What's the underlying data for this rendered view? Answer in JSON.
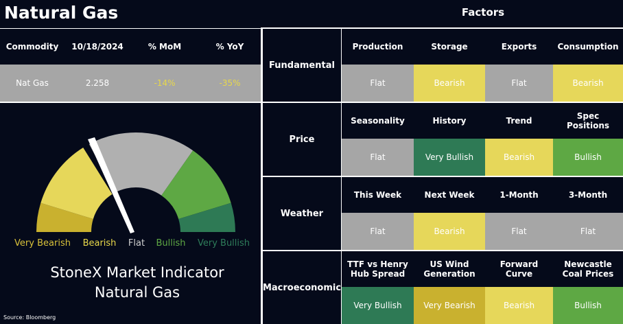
{
  "title": "Natural Gas",
  "factors_header": "Factors",
  "commodity_table": {
    "headers": [
      "Commodity",
      "10/18/2024",
      "% MoM",
      "% YoY"
    ],
    "rows": [
      [
        "Nat Gas",
        "2.258",
        "-14%",
        "-35%"
      ]
    ],
    "row_colors": [
      [
        "#ffffff",
        "#ffffff",
        "#e8d84a",
        "#e8d84a"
      ]
    ]
  },
  "gauge": {
    "labels": [
      "Very Bearish",
      "Bearish",
      "Flat",
      "Bullish",
      "Very Bullish"
    ],
    "label_colors": [
      "#d9c23a",
      "#e8d84a",
      "#d0d0d0",
      "#5ea844",
      "#2e7d5a"
    ]
  },
  "indicator_title": [
    "StoneX Market Indicator",
    "Natural Gas"
  ],
  "source": "Source: Bloomberg",
  "factors": [
    {
      "group": "Fundamental",
      "items": [
        {
          "name": "Production",
          "signal": "Flat",
          "color": "#a6a6a6"
        },
        {
          "name": "Storage",
          "signal": "Bearish",
          "color": "#e6d75a"
        },
        {
          "name": "Exports",
          "signal": "Flat",
          "color": "#a6a6a6"
        },
        {
          "name": "Consumption",
          "signal": "Bearish",
          "color": "#e6d75a"
        }
      ]
    },
    {
      "group": "Price",
      "items": [
        {
          "name": "Seasonality",
          "signal": "Flat",
          "color": "#a6a6a6"
        },
        {
          "name": "History",
          "signal": "Very Bullish",
          "color": "#2e7a55"
        },
        {
          "name": "Trend",
          "signal": "Bearish",
          "color": "#e6d75a"
        },
        {
          "name": "Spec Positions",
          "signal": "Bullish",
          "color": "#5ea844"
        }
      ]
    },
    {
      "group": "Weather",
      "items": [
        {
          "name": "This Week",
          "signal": "Flat",
          "color": "#a6a6a6"
        },
        {
          "name": "Next Week",
          "signal": "Bearish",
          "color": "#e6d75a"
        },
        {
          "name": "1-Month",
          "signal": "Flat",
          "color": "#a6a6a6"
        },
        {
          "name": "3-Month",
          "signal": "Flat",
          "color": "#a6a6a6"
        }
      ]
    },
    {
      "group": "Macroeconomic",
      "items": [
        {
          "name": "TTF vs Henry Hub Spread",
          "signal": "Very Bullish",
          "color": "#2e7a55"
        },
        {
          "name": "US Wind Generation",
          "signal": "Very Bearish",
          "color": "#c9b12f"
        },
        {
          "name": "Forward Curve",
          "signal": "Bearish",
          "color": "#e6d75a"
        },
        {
          "name": "Newcastle Coal Prices",
          "signal": "Bullish",
          "color": "#5ea844"
        }
      ]
    }
  ]
}
